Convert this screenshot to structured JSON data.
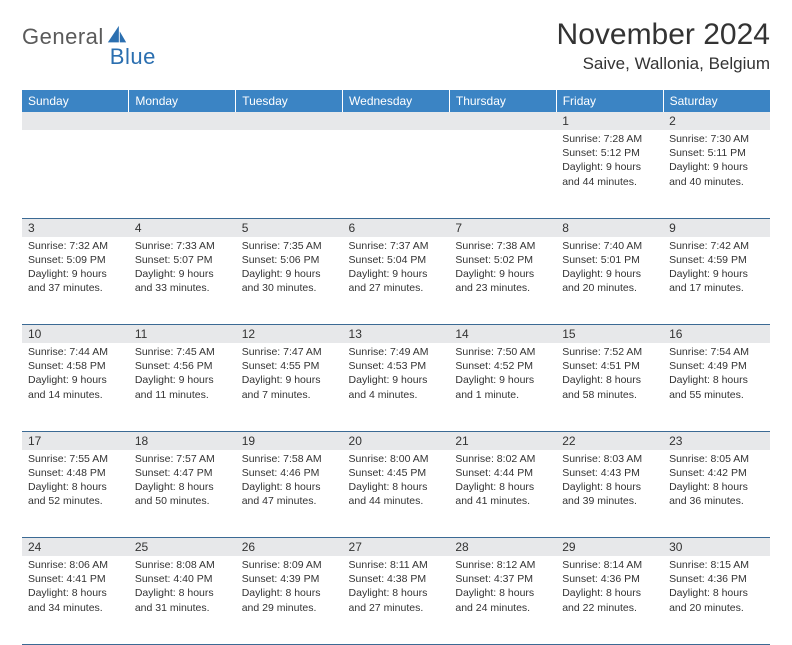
{
  "brand": {
    "part1": "General",
    "part2": "Blue"
  },
  "title": "November 2024",
  "location": "Saive, Wallonia, Belgium",
  "colors": {
    "header_bg": "#3b84c4",
    "header_text": "#ffffff",
    "daynum_bg": "#e7e8ea",
    "border": "#3b6a94",
    "brand_gray": "#5a5a5a",
    "brand_blue": "#2b6fb0",
    "text": "#333333",
    "background": "#ffffff"
  },
  "typography": {
    "title_fontsize": 30,
    "location_fontsize": 17,
    "dayheader_fontsize": 12,
    "daynum_fontsize": 12,
    "cell_fontsize": 10.5,
    "font_family": "Arial"
  },
  "day_headers": [
    "Sunday",
    "Monday",
    "Tuesday",
    "Wednesday",
    "Thursday",
    "Friday",
    "Saturday"
  ],
  "weeks": [
    {
      "nums": [
        "",
        "",
        "",
        "",
        "",
        "1",
        "2"
      ],
      "cells": [
        null,
        null,
        null,
        null,
        null,
        {
          "sunrise": "Sunrise: 7:28 AM",
          "sunset": "Sunset: 5:12 PM",
          "day1": "Daylight: 9 hours",
          "day2": "and 44 minutes."
        },
        {
          "sunrise": "Sunrise: 7:30 AM",
          "sunset": "Sunset: 5:11 PM",
          "day1": "Daylight: 9 hours",
          "day2": "and 40 minutes."
        }
      ]
    },
    {
      "nums": [
        "3",
        "4",
        "5",
        "6",
        "7",
        "8",
        "9"
      ],
      "cells": [
        {
          "sunrise": "Sunrise: 7:32 AM",
          "sunset": "Sunset: 5:09 PM",
          "day1": "Daylight: 9 hours",
          "day2": "and 37 minutes."
        },
        {
          "sunrise": "Sunrise: 7:33 AM",
          "sunset": "Sunset: 5:07 PM",
          "day1": "Daylight: 9 hours",
          "day2": "and 33 minutes."
        },
        {
          "sunrise": "Sunrise: 7:35 AM",
          "sunset": "Sunset: 5:06 PM",
          "day1": "Daylight: 9 hours",
          "day2": "and 30 minutes."
        },
        {
          "sunrise": "Sunrise: 7:37 AM",
          "sunset": "Sunset: 5:04 PM",
          "day1": "Daylight: 9 hours",
          "day2": "and 27 minutes."
        },
        {
          "sunrise": "Sunrise: 7:38 AM",
          "sunset": "Sunset: 5:02 PM",
          "day1": "Daylight: 9 hours",
          "day2": "and 23 minutes."
        },
        {
          "sunrise": "Sunrise: 7:40 AM",
          "sunset": "Sunset: 5:01 PM",
          "day1": "Daylight: 9 hours",
          "day2": "and 20 minutes."
        },
        {
          "sunrise": "Sunrise: 7:42 AM",
          "sunset": "Sunset: 4:59 PM",
          "day1": "Daylight: 9 hours",
          "day2": "and 17 minutes."
        }
      ]
    },
    {
      "nums": [
        "10",
        "11",
        "12",
        "13",
        "14",
        "15",
        "16"
      ],
      "cells": [
        {
          "sunrise": "Sunrise: 7:44 AM",
          "sunset": "Sunset: 4:58 PM",
          "day1": "Daylight: 9 hours",
          "day2": "and 14 minutes."
        },
        {
          "sunrise": "Sunrise: 7:45 AM",
          "sunset": "Sunset: 4:56 PM",
          "day1": "Daylight: 9 hours",
          "day2": "and 11 minutes."
        },
        {
          "sunrise": "Sunrise: 7:47 AM",
          "sunset": "Sunset: 4:55 PM",
          "day1": "Daylight: 9 hours",
          "day2": "and 7 minutes."
        },
        {
          "sunrise": "Sunrise: 7:49 AM",
          "sunset": "Sunset: 4:53 PM",
          "day1": "Daylight: 9 hours",
          "day2": "and 4 minutes."
        },
        {
          "sunrise": "Sunrise: 7:50 AM",
          "sunset": "Sunset: 4:52 PM",
          "day1": "Daylight: 9 hours",
          "day2": "and 1 minute."
        },
        {
          "sunrise": "Sunrise: 7:52 AM",
          "sunset": "Sunset: 4:51 PM",
          "day1": "Daylight: 8 hours",
          "day2": "and 58 minutes."
        },
        {
          "sunrise": "Sunrise: 7:54 AM",
          "sunset": "Sunset: 4:49 PM",
          "day1": "Daylight: 8 hours",
          "day2": "and 55 minutes."
        }
      ]
    },
    {
      "nums": [
        "17",
        "18",
        "19",
        "20",
        "21",
        "22",
        "23"
      ],
      "cells": [
        {
          "sunrise": "Sunrise: 7:55 AM",
          "sunset": "Sunset: 4:48 PM",
          "day1": "Daylight: 8 hours",
          "day2": "and 52 minutes."
        },
        {
          "sunrise": "Sunrise: 7:57 AM",
          "sunset": "Sunset: 4:47 PM",
          "day1": "Daylight: 8 hours",
          "day2": "and 50 minutes."
        },
        {
          "sunrise": "Sunrise: 7:58 AM",
          "sunset": "Sunset: 4:46 PM",
          "day1": "Daylight: 8 hours",
          "day2": "and 47 minutes."
        },
        {
          "sunrise": "Sunrise: 8:00 AM",
          "sunset": "Sunset: 4:45 PM",
          "day1": "Daylight: 8 hours",
          "day2": "and 44 minutes."
        },
        {
          "sunrise": "Sunrise: 8:02 AM",
          "sunset": "Sunset: 4:44 PM",
          "day1": "Daylight: 8 hours",
          "day2": "and 41 minutes."
        },
        {
          "sunrise": "Sunrise: 8:03 AM",
          "sunset": "Sunset: 4:43 PM",
          "day1": "Daylight: 8 hours",
          "day2": "and 39 minutes."
        },
        {
          "sunrise": "Sunrise: 8:05 AM",
          "sunset": "Sunset: 4:42 PM",
          "day1": "Daylight: 8 hours",
          "day2": "and 36 minutes."
        }
      ]
    },
    {
      "nums": [
        "24",
        "25",
        "26",
        "27",
        "28",
        "29",
        "30"
      ],
      "cells": [
        {
          "sunrise": "Sunrise: 8:06 AM",
          "sunset": "Sunset: 4:41 PM",
          "day1": "Daylight: 8 hours",
          "day2": "and 34 minutes."
        },
        {
          "sunrise": "Sunrise: 8:08 AM",
          "sunset": "Sunset: 4:40 PM",
          "day1": "Daylight: 8 hours",
          "day2": "and 31 minutes."
        },
        {
          "sunrise": "Sunrise: 8:09 AM",
          "sunset": "Sunset: 4:39 PM",
          "day1": "Daylight: 8 hours",
          "day2": "and 29 minutes."
        },
        {
          "sunrise": "Sunrise: 8:11 AM",
          "sunset": "Sunset: 4:38 PM",
          "day1": "Daylight: 8 hours",
          "day2": "and 27 minutes."
        },
        {
          "sunrise": "Sunrise: 8:12 AM",
          "sunset": "Sunset: 4:37 PM",
          "day1": "Daylight: 8 hours",
          "day2": "and 24 minutes."
        },
        {
          "sunrise": "Sunrise: 8:14 AM",
          "sunset": "Sunset: 4:36 PM",
          "day1": "Daylight: 8 hours",
          "day2": "and 22 minutes."
        },
        {
          "sunrise": "Sunrise: 8:15 AM",
          "sunset": "Sunset: 4:36 PM",
          "day1": "Daylight: 8 hours",
          "day2": "and 20 minutes."
        }
      ]
    }
  ]
}
